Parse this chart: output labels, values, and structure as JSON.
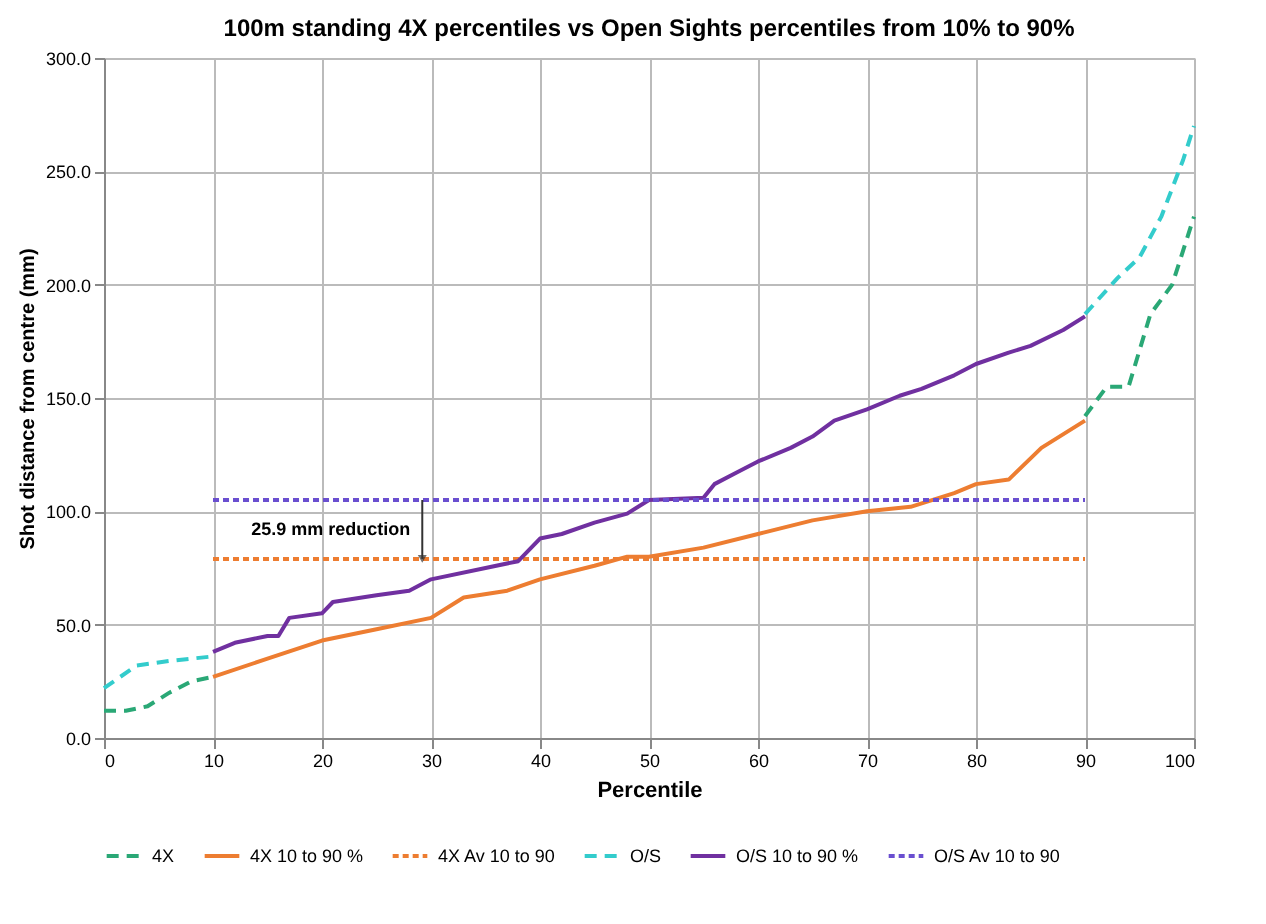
{
  "chart_data": {
    "type": "line",
    "title": "100m standing 4X percentiles vs Open Sights percentiles from 10% to 90%",
    "xlabel": "Percentile",
    "ylabel": "Shot distance from centre (mm)",
    "xlim": [
      0,
      100
    ],
    "xticks": [
      0,
      10,
      20,
      30,
      40,
      50,
      60,
      70,
      80,
      90,
      100
    ],
    "ylim": [
      0,
      300
    ],
    "yticks": [
      {
        "value": 0,
        "label": "0.0"
      },
      {
        "value": 50,
        "label": "50.0"
      },
      {
        "value": 100,
        "label": "100.0"
      },
      {
        "value": 150,
        "label": "150.0"
      },
      {
        "value": 200,
        "label": "200.0"
      },
      {
        "value": 250,
        "label": "250.0"
      },
      {
        "value": 300,
        "label": "300.0"
      }
    ],
    "grid": true,
    "legend": "bottom",
    "marker": "none",
    "annotations": [
      "25.9 mm reduction"
    ],
    "series": [
      {
        "name": "4X",
        "color": "#2aa876",
        "line_style": "dashed",
        "x": [
          0,
          2,
          4,
          6,
          8,
          10,
          null,
          90,
          92,
          94,
          96,
          98,
          99,
          100
        ],
        "values": [
          12,
          12,
          14,
          20,
          25,
          27,
          null,
          142,
          155,
          155,
          187,
          200,
          215,
          230
        ]
      },
      {
        "name": "4X 10 to 90 %",
        "color": "#ed7d31",
        "line_style": "solid",
        "x": [
          10,
          15,
          20,
          25,
          30,
          33,
          37,
          40,
          45,
          48,
          50,
          55,
          60,
          65,
          70,
          74,
          78,
          80,
          83,
          86,
          90
        ],
        "values": [
          27,
          35,
          43,
          48,
          53,
          62,
          65,
          70,
          76,
          80,
          80,
          84,
          90,
          96,
          100,
          102,
          108,
          112,
          114,
          128,
          140
        ]
      },
      {
        "name": "4X Av 10 to 90",
        "color": "#ed7d31",
        "line_style": "dotted",
        "x": [
          10,
          90
        ],
        "values": [
          79,
          79
        ]
      },
      {
        "name": "O/S",
        "color": "#33cccc",
        "line_style": "dashed",
        "x": [
          0,
          3,
          6,
          10,
          null,
          90,
          93,
          95,
          97,
          99,
          100
        ],
        "values": [
          22,
          32,
          34,
          36,
          null,
          187,
          203,
          212,
          230,
          255,
          270
        ]
      },
      {
        "name": "O/S 10 to 90 %",
        "color": "#7030a0",
        "line_style": "solid",
        "x": [
          10,
          12,
          15,
          16,
          17,
          20,
          21,
          25,
          28,
          30,
          35,
          38,
          40,
          42,
          45,
          48,
          50,
          55,
          56,
          58,
          60,
          63,
          65,
          67,
          70,
          73,
          75,
          78,
          80,
          83,
          85,
          88,
          90
        ],
        "values": [
          38,
          42,
          45,
          45,
          53,
          55,
          60,
          63,
          65,
          70,
          75,
          78,
          88,
          90,
          95,
          99,
          105,
          106,
          112,
          117,
          122,
          128,
          133,
          140,
          145,
          151,
          154,
          160,
          165,
          170,
          173,
          180,
          186
        ]
      },
      {
        "name": "O/S Av 10 to 90",
        "color": "#6a4fd0",
        "line_style": "dotted",
        "x": [
          10,
          90
        ],
        "values": [
          105,
          105
        ]
      }
    ]
  }
}
